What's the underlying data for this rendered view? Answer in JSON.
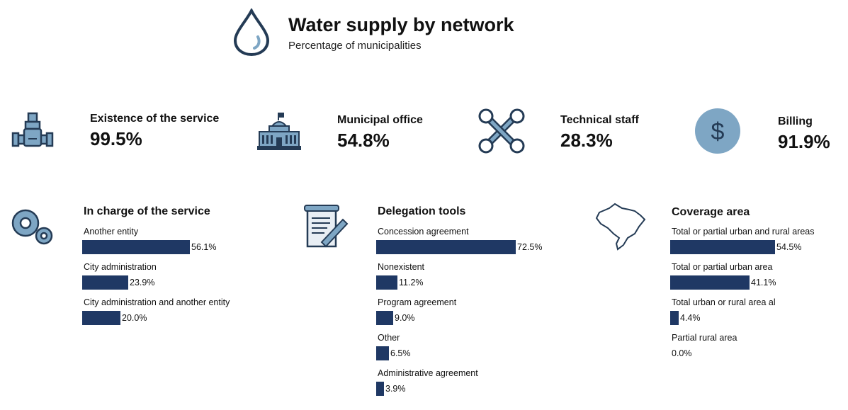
{
  "header": {
    "title": "Water supply by network",
    "subtitle": "Percentage of municipalities"
  },
  "kpis": [
    {
      "label": "Existence of the service",
      "value": "99.5%",
      "icon": "pipe-valve-icon"
    },
    {
      "label": "Municipal office",
      "value": "54.8%",
      "icon": "city-hall-icon"
    },
    {
      "label": "Technical staff",
      "value": "28.3%",
      "icon": "wrench-tools-icon"
    },
    {
      "label": "Billing",
      "value": "91.9%",
      "icon": "dollar-coin-icon"
    }
  ],
  "colors": {
    "bar": "#1f3864",
    "icon_fill": "#7ea6c4",
    "icon_stroke": "#243b55"
  },
  "chart_data": [
    {
      "type": "bar",
      "title": "In charge of the service",
      "categories": [
        "Another entity",
        "City administration",
        "City administration and another entity"
      ],
      "values": [
        56.1,
        23.9,
        20.0
      ],
      "value_labels": [
        "56.1%",
        "23.9%",
        "20.0%"
      ],
      "unit": "%"
    },
    {
      "type": "bar",
      "title": "Delegation tools",
      "categories": [
        "Concession agreement",
        "Nonexistent",
        "Program agreement",
        "Other",
        "Administrative agreement"
      ],
      "values": [
        72.5,
        11.2,
        9.0,
        6.5,
        3.9
      ],
      "value_labels": [
        "72.5%",
        "11.2%",
        "9.0%",
        "6.5%",
        "3.9%"
      ],
      "unit": "%"
    },
    {
      "type": "bar",
      "title": "Coverage area",
      "categories": [
        "Total or partial urban and rural areas",
        "Total or partial urban area",
        "Total urban or rural area al",
        "Partial rural area"
      ],
      "values": [
        54.5,
        41.1,
        4.4,
        0.0
      ],
      "value_labels": [
        "54.5%",
        "41.1%",
        "4.4%",
        "0.0%"
      ],
      "unit": "%"
    }
  ]
}
